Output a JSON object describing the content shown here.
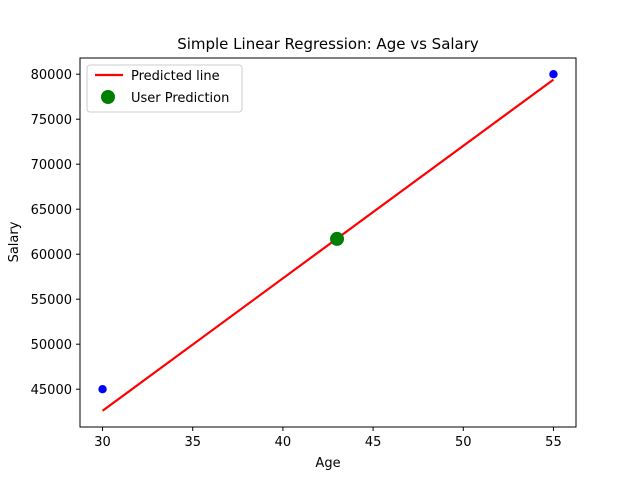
{
  "chart_data": {
    "type": "scatter",
    "title": "Simple Linear Regression: Age vs Salary",
    "xlabel": "Age",
    "ylabel": "Salary",
    "xlim": [
      28.75,
      56.25
    ],
    "ylim": [
      40800,
      81800
    ],
    "xticks": [
      30,
      35,
      40,
      45,
      50,
      55
    ],
    "yticks": [
      45000,
      50000,
      55000,
      60000,
      65000,
      70000,
      75000,
      80000
    ],
    "grid": false,
    "legend_position": "top-left",
    "series": [
      {
        "kind": "scatter",
        "color": "#0000ff",
        "points": [
          {
            "x": 30,
            "y": 45000
          },
          {
            "x": 55,
            "y": 80000
          }
        ]
      },
      {
        "name": "Predicted line",
        "kind": "line",
        "color": "#ff0000",
        "points": [
          {
            "x": 30,
            "y": 42600
          },
          {
            "x": 55,
            "y": 79400
          }
        ]
      },
      {
        "name": "User Prediction",
        "kind": "marker",
        "color": "#008000",
        "points": [
          {
            "x": 43,
            "y": 61700
          }
        ]
      }
    ],
    "legend": [
      {
        "label": "Predicted line",
        "kind": "line",
        "color": "#ff0000"
      },
      {
        "label": "User Prediction",
        "kind": "marker",
        "color": "#008000"
      }
    ]
  }
}
